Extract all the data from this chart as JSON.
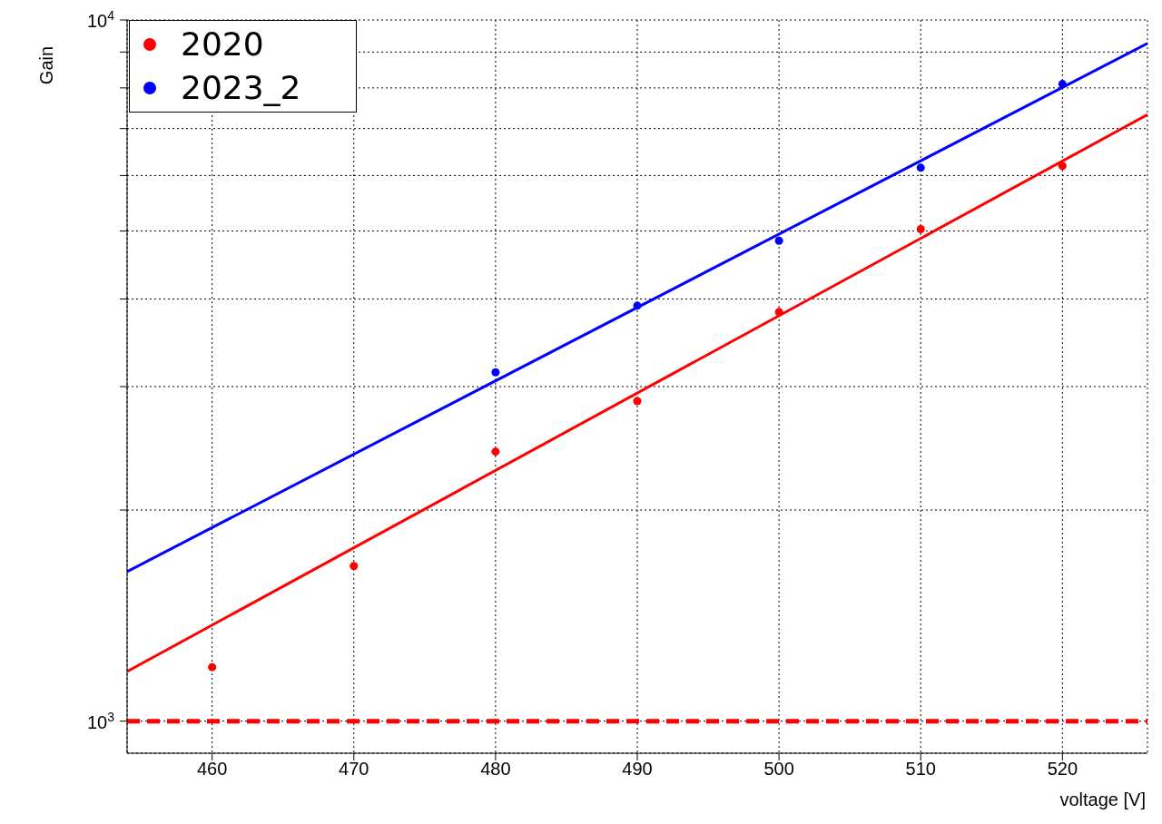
{
  "chart_data": {
    "type": "scatter",
    "xlabel": "voltage [V]",
    "ylabel": "Gain",
    "log": "y",
    "grid": true,
    "legend": "top left",
    "marker": "circle",
    "xlim": [
      454,
      526
    ],
    "xticks": [
      460,
      470,
      480,
      490,
      500,
      510,
      520
    ],
    "ylim": [
      900,
      10000
    ],
    "yticks": [
      {
        "value": 1000,
        "label": "10$^{3}$"
      },
      {
        "value": 2000,
        "label": null
      },
      {
        "value": 3000,
        "label": null
      },
      {
        "value": 4000,
        "label": null
      },
      {
        "value": 5000,
        "label": null
      },
      {
        "value": 6000,
        "label": null
      },
      {
        "value": 7000,
        "label": null
      },
      {
        "value": 8000,
        "label": null
      },
      {
        "value": 9000,
        "label": null
      },
      {
        "value": 10000,
        "label": "10$^{4}$"
      }
    ],
    "series": [
      {
        "name": "2020",
        "color": "#ff0000",
        "x": [
          460,
          470,
          480,
          490,
          500,
          510,
          520
        ],
        "values": [
          1194,
          1664,
          2423,
          2860,
          3832,
          5032,
          6191
        ]
      },
      {
        "name": "2023_2",
        "color": "#0000ff",
        "x": [
          480,
          490,
          500,
          510,
          520
        ],
        "values": [
          3144,
          3913,
          4843,
          6155,
          8103
        ]
      },
      {
        "type": "line",
        "marker": "none",
        "color": "#ff0000",
        "x": [
          454,
          526
        ],
        "values": [
          1177,
          7328
        ]
      },
      {
        "type": "line",
        "marker": "none",
        "color": "#0000ff",
        "x": [
          454,
          526
        ],
        "values": [
          1634,
          9260
        ]
      }
    ],
    "ref_lines": [
      {
        "axis": "y",
        "value": 1000,
        "color": "#ff0000",
        "line_style": "dashed"
      }
    ]
  }
}
